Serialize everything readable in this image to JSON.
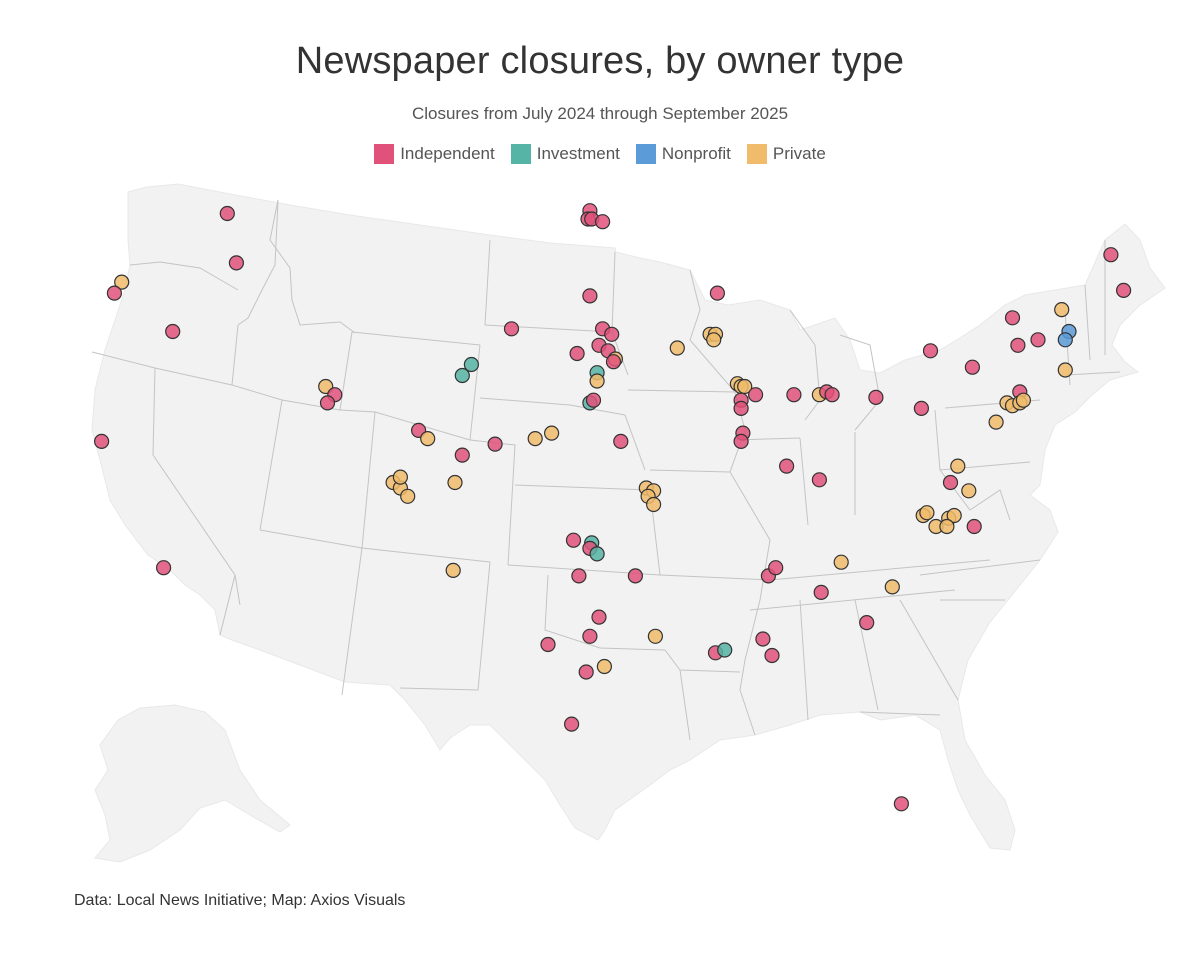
{
  "header": {
    "title": "Newspaper closures, by owner type",
    "subtitle": "Closures from July 2024 through September 2025"
  },
  "legend": [
    {
      "label": "Independent",
      "color": "#e0527a"
    },
    {
      "label": "Investment",
      "color": "#55b4a5"
    },
    {
      "label": "Nonprofit",
      "color": "#5b9bd8"
    },
    {
      "label": "Private",
      "color": "#f0bc6b"
    }
  ],
  "footer": {
    "source": "Data: Local News Initiative; Map: Axios Visuals"
  },
  "map": {
    "land_color": "#f2f2f2",
    "border_color": "#c4c4c4",
    "closures": [
      {
        "lon": -117.1,
        "lat": 48.4,
        "type": "Independent"
      },
      {
        "lon": -122.9,
        "lat": 45.9,
        "type": "Private"
      },
      {
        "lon": -123.3,
        "lat": 45.5,
        "type": "Independent"
      },
      {
        "lon": -116.6,
        "lat": 46.6,
        "type": "Independent"
      },
      {
        "lon": -120.1,
        "lat": 44.1,
        "type": "Independent"
      },
      {
        "lon": -124.0,
        "lat": 40.1,
        "type": "Independent"
      },
      {
        "lon": -120.6,
        "lat": 35.5,
        "type": "Independent"
      },
      {
        "lon": -111.7,
        "lat": 42.1,
        "type": "Private"
      },
      {
        "lon": -111.2,
        "lat": 41.8,
        "type": "Independent"
      },
      {
        "lon": -111.6,
        "lat": 41.5,
        "type": "Independent"
      },
      {
        "lon": -106.6,
        "lat": 40.5,
        "type": "Independent"
      },
      {
        "lon": -106.1,
        "lat": 40.2,
        "type": "Private"
      },
      {
        "lon": -108.0,
        "lat": 38.6,
        "type": "Private"
      },
      {
        "lon": -107.6,
        "lat": 38.4,
        "type": "Private"
      },
      {
        "lon": -107.6,
        "lat": 38.8,
        "type": "Private"
      },
      {
        "lon": -107.2,
        "lat": 38.1,
        "type": "Private"
      },
      {
        "lon": -104.6,
        "lat": 38.6,
        "type": "Private"
      },
      {
        "lon": -104.2,
        "lat": 39.6,
        "type": "Independent"
      },
      {
        "lon": -102.4,
        "lat": 40.0,
        "type": "Independent"
      },
      {
        "lon": -100.2,
        "lat": 40.2,
        "type": "Private"
      },
      {
        "lon": -104.7,
        "lat": 35.4,
        "type": "Private"
      },
      {
        "lon": -97.2,
        "lat": 48.5,
        "type": "Independent"
      },
      {
        "lon": -97.3,
        "lat": 48.2,
        "type": "Independent"
      },
      {
        "lon": -97.1,
        "lat": 48.2,
        "type": "Independent"
      },
      {
        "lon": -96.5,
        "lat": 48.1,
        "type": "Independent"
      },
      {
        "lon": -97.2,
        "lat": 45.4,
        "type": "Independent"
      },
      {
        "lon": -101.5,
        "lat": 44.2,
        "type": "Independent"
      },
      {
        "lon": -97.9,
        "lat": 43.3,
        "type": "Independent"
      },
      {
        "lon": -96.5,
        "lat": 44.2,
        "type": "Independent"
      },
      {
        "lon": -96.7,
        "lat": 43.6,
        "type": "Independent"
      },
      {
        "lon": -96.0,
        "lat": 44.0,
        "type": "Independent"
      },
      {
        "lon": -96.2,
        "lat": 43.4,
        "type": "Independent"
      },
      {
        "lon": -95.8,
        "lat": 43.1,
        "type": "Private"
      },
      {
        "lon": -95.9,
        "lat": 43.0,
        "type": "Independent"
      },
      {
        "lon": -104.2,
        "lat": 42.5,
        "type": "Investment"
      },
      {
        "lon": -103.7,
        "lat": 42.9,
        "type": "Investment"
      },
      {
        "lon": -96.8,
        "lat": 42.6,
        "type": "Investment"
      },
      {
        "lon": -96.8,
        "lat": 42.3,
        "type": "Private"
      },
      {
        "lon": -97.2,
        "lat": 41.5,
        "type": "Investment"
      },
      {
        "lon": -97.0,
        "lat": 41.6,
        "type": "Independent"
      },
      {
        "lon": -99.3,
        "lat": 40.4,
        "type": "Private"
      },
      {
        "lon": -95.5,
        "lat": 40.1,
        "type": "Independent"
      },
      {
        "lon": -94.1,
        "lat": 38.4,
        "type": "Private"
      },
      {
        "lon": -93.7,
        "lat": 38.3,
        "type": "Private"
      },
      {
        "lon": -94.0,
        "lat": 38.1,
        "type": "Private"
      },
      {
        "lon": -93.7,
        "lat": 37.8,
        "type": "Private"
      },
      {
        "lon": -98.1,
        "lat": 36.5,
        "type": "Independent"
      },
      {
        "lon": -97.1,
        "lat": 36.4,
        "type": "Investment"
      },
      {
        "lon": -97.2,
        "lat": 36.2,
        "type": "Independent"
      },
      {
        "lon": -96.8,
        "lat": 36.0,
        "type": "Investment"
      },
      {
        "lon": -97.8,
        "lat": 35.2,
        "type": "Independent"
      },
      {
        "lon": -94.7,
        "lat": 35.2,
        "type": "Independent"
      },
      {
        "lon": -96.7,
        "lat": 33.7,
        "type": "Independent"
      },
      {
        "lon": -97.2,
        "lat": 33.0,
        "type": "Independent"
      },
      {
        "lon": -99.5,
        "lat": 32.7,
        "type": "Independent"
      },
      {
        "lon": -97.4,
        "lat": 31.7,
        "type": "Independent"
      },
      {
        "lon": -96.4,
        "lat": 31.9,
        "type": "Private"
      },
      {
        "lon": -98.2,
        "lat": 29.8,
        "type": "Independent"
      },
      {
        "lon": -93.6,
        "lat": 33.0,
        "type": "Private"
      },
      {
        "lon": -90.3,
        "lat": 32.4,
        "type": "Independent"
      },
      {
        "lon": -89.8,
        "lat": 32.5,
        "type": "Investment"
      },
      {
        "lon": -87.7,
        "lat": 32.9,
        "type": "Independent"
      },
      {
        "lon": -87.2,
        "lat": 32.3,
        "type": "Independent"
      },
      {
        "lon": -87.4,
        "lat": 35.2,
        "type": "Independent"
      },
      {
        "lon": -87.0,
        "lat": 35.5,
        "type": "Independent"
      },
      {
        "lon": -84.5,
        "lat": 34.6,
        "type": "Independent"
      },
      {
        "lon": -83.4,
        "lat": 35.7,
        "type": "Private"
      },
      {
        "lon": -82.0,
        "lat": 33.5,
        "type": "Independent"
      },
      {
        "lon": -80.6,
        "lat": 34.8,
        "type": "Private"
      },
      {
        "lon": -80.1,
        "lat": 26.9,
        "type": "Independent"
      },
      {
        "lon": -90.2,
        "lat": 45.5,
        "type": "Independent"
      },
      {
        "lon": -90.6,
        "lat": 44.0,
        "type": "Private"
      },
      {
        "lon": -90.3,
        "lat": 44.0,
        "type": "Private"
      },
      {
        "lon": -90.4,
        "lat": 43.8,
        "type": "Private"
      },
      {
        "lon": -92.4,
        "lat": 43.5,
        "type": "Private"
      },
      {
        "lon": -89.1,
        "lat": 42.2,
        "type": "Private"
      },
      {
        "lon": -88.9,
        "lat": 42.1,
        "type": "Private"
      },
      {
        "lon": -88.7,
        "lat": 42.1,
        "type": "Private"
      },
      {
        "lon": -88.1,
        "lat": 41.8,
        "type": "Independent"
      },
      {
        "lon": -88.9,
        "lat": 41.6,
        "type": "Independent"
      },
      {
        "lon": -88.9,
        "lat": 41.3,
        "type": "Independent"
      },
      {
        "lon": -88.8,
        "lat": 40.4,
        "type": "Independent"
      },
      {
        "lon": -88.9,
        "lat": 40.1,
        "type": "Independent"
      },
      {
        "lon": -86.4,
        "lat": 39.2,
        "type": "Independent"
      },
      {
        "lon": -86.0,
        "lat": 41.8,
        "type": "Independent"
      },
      {
        "lon": -84.6,
        "lat": 41.8,
        "type": "Private"
      },
      {
        "lon": -84.2,
        "lat": 41.9,
        "type": "Independent"
      },
      {
        "lon": -83.9,
        "lat": 41.8,
        "type": "Independent"
      },
      {
        "lon": -84.6,
        "lat": 38.7,
        "type": "Independent"
      },
      {
        "lon": -81.5,
        "lat": 41.7,
        "type": "Independent"
      },
      {
        "lon": -78.5,
        "lat": 43.4,
        "type": "Independent"
      },
      {
        "lon": -76.2,
        "lat": 42.8,
        "type": "Independent"
      },
      {
        "lon": -74.0,
        "lat": 44.6,
        "type": "Independent"
      },
      {
        "lon": -73.7,
        "lat": 43.6,
        "type": "Independent"
      },
      {
        "lon": -72.6,
        "lat": 43.8,
        "type": "Independent"
      },
      {
        "lon": -71.3,
        "lat": 44.9,
        "type": "Private"
      },
      {
        "lon": -70.9,
        "lat": 44.1,
        "type": "Nonprofit"
      },
      {
        "lon": -71.1,
        "lat": 43.8,
        "type": "Nonprofit"
      },
      {
        "lon": -71.1,
        "lat": 42.7,
        "type": "Private"
      },
      {
        "lon": -68.6,
        "lat": 46.9,
        "type": "Independent"
      },
      {
        "lon": -67.9,
        "lat": 45.6,
        "type": "Independent"
      },
      {
        "lon": -73.6,
        "lat": 41.9,
        "type": "Independent"
      },
      {
        "lon": -74.3,
        "lat": 41.5,
        "type": "Private"
      },
      {
        "lon": -74.0,
        "lat": 41.4,
        "type": "Private"
      },
      {
        "lon": -73.6,
        "lat": 41.5,
        "type": "Private"
      },
      {
        "lon": -73.4,
        "lat": 41.6,
        "type": "Private"
      },
      {
        "lon": -74.9,
        "lat": 40.8,
        "type": "Private"
      },
      {
        "lon": -79.0,
        "lat": 41.3,
        "type": "Independent"
      },
      {
        "lon": -77.0,
        "lat": 39.2,
        "type": "Private"
      },
      {
        "lon": -76.4,
        "lat": 38.3,
        "type": "Private"
      },
      {
        "lon": -77.4,
        "lat": 38.6,
        "type": "Independent"
      },
      {
        "lon": -78.9,
        "lat": 37.4,
        "type": "Private"
      },
      {
        "lon": -78.7,
        "lat": 37.5,
        "type": "Private"
      },
      {
        "lon": -78.2,
        "lat": 37.0,
        "type": "Private"
      },
      {
        "lon": -77.5,
        "lat": 37.3,
        "type": "Private"
      },
      {
        "lon": -77.2,
        "lat": 37.4,
        "type": "Private"
      },
      {
        "lon": -77.6,
        "lat": 37.0,
        "type": "Private"
      },
      {
        "lon": -76.1,
        "lat": 37.0,
        "type": "Independent"
      }
    ]
  }
}
